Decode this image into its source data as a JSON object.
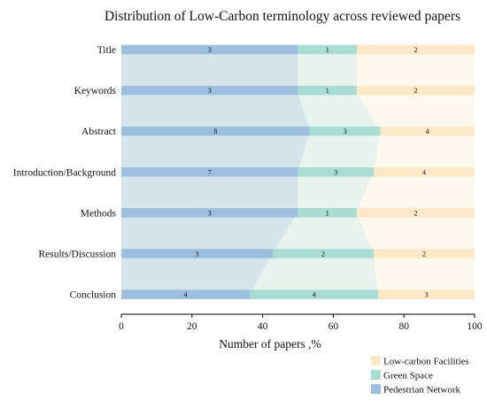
{
  "chart_data": {
    "type": "bar",
    "stacked": true,
    "orientation": "horizontal",
    "normalized": true,
    "title": "Distribution of Low-Carbon terminology across reviewed papers",
    "xlabel": "Number of papers ,%",
    "ylabel": "",
    "xlim": [
      0,
      100
    ],
    "xticks": [
      0,
      20,
      40,
      60,
      80,
      100
    ],
    "grid": false,
    "legend_position": "bottom-right",
    "categories": [
      "Title",
      "Keywords",
      "Abstract",
      "Introduction/Background",
      "Methods",
      "Results/Discussion",
      "Conclusion"
    ],
    "series": [
      {
        "name": "Pedestrian Network",
        "color": "#9dbfdf",
        "band_color": "#d6e5ec",
        "values": [
          3,
          3,
          8,
          7,
          3,
          3,
          4
        ]
      },
      {
        "name": "Green Space",
        "color": "#a9dcd2",
        "band_color": "#e9f4ee",
        "values": [
          1,
          1,
          3,
          3,
          1,
          2,
          4
        ]
      },
      {
        "name": "Low-carbon Facilities",
        "color": "#fde8c8",
        "band_color": "#fef8ee",
        "values": [
          2,
          2,
          4,
          4,
          2,
          2,
          3
        ]
      }
    ],
    "legend_order": [
      "Low-carbon Facilities",
      "Green Space",
      "Pedestrian Network"
    ]
  }
}
